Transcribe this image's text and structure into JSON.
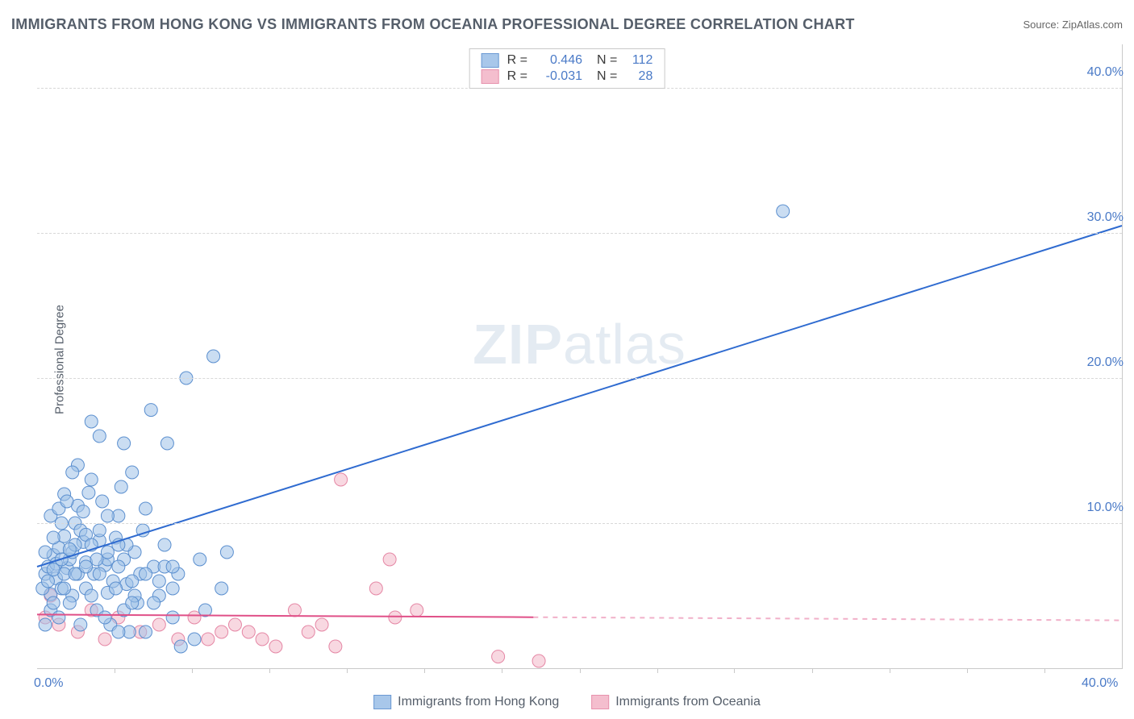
{
  "title": "IMMIGRANTS FROM HONG KONG VS IMMIGRANTS FROM OCEANIA PROFESSIONAL DEGREE CORRELATION CHART",
  "source_label": "Source: ",
  "source_value": "ZipAtlas.com",
  "ylabel": "Professional Degree",
  "watermark": {
    "bold": "ZIP",
    "rest": "atlas"
  },
  "chart": {
    "type": "scatter-with-regression",
    "xlim": [
      0,
      40
    ],
    "ylim": [
      0,
      43
    ],
    "xticks": [
      0,
      40
    ],
    "xtick_labels": [
      "0.0%",
      "40.0%"
    ],
    "xtick_minor_positions": [
      2.86,
      5.71,
      8.57,
      11.43,
      14.28,
      17.14,
      20.0,
      22.86,
      25.71,
      28.57,
      31.43,
      34.28,
      37.14
    ],
    "yticks": [
      10,
      20,
      30,
      40
    ],
    "ytick_labels": [
      "10.0%",
      "20.0%",
      "30.0%",
      "40.0%"
    ],
    "background_color": "#ffffff",
    "grid_color": "#d8d8d8",
    "axis_color": "#c9c9c9",
    "tick_label_color": "#4a7ac7",
    "marker_radius": 8,
    "marker_stroke_width": 1,
    "series": [
      {
        "name": "Immigrants from Hong Kong",
        "color_fill": "#9fc1e8",
        "color_stroke": "#5b8fcf",
        "fill_opacity": 0.55,
        "R": "0.446",
        "N": "112",
        "regression": {
          "x1": 0,
          "y1": 7.0,
          "x2": 40,
          "y2": 30.5,
          "color": "#2f6bd0",
          "width": 2,
          "dash_after_x": null
        },
        "points": [
          [
            0.3,
            6.5
          ],
          [
            0.4,
            7.0
          ],
          [
            0.5,
            5.1
          ],
          [
            0.6,
            7.8
          ],
          [
            0.7,
            6.2
          ],
          [
            0.8,
            8.3
          ],
          [
            0.9,
            5.5
          ],
          [
            1.0,
            9.1
          ],
          [
            1.1,
            6.9
          ],
          [
            1.2,
            7.5
          ],
          [
            1.3,
            8.0
          ],
          [
            1.4,
            10.0
          ],
          [
            1.5,
            11.2
          ],
          [
            1.6,
            9.5
          ],
          [
            1.7,
            8.7
          ],
          [
            1.8,
            7.3
          ],
          [
            1.9,
            12.1
          ],
          [
            2.0,
            13.0
          ],
          [
            2.1,
            6.5
          ],
          [
            2.2,
            4.0
          ],
          [
            2.3,
            8.8
          ],
          [
            2.4,
            11.5
          ],
          [
            2.5,
            7.1
          ],
          [
            2.6,
            5.2
          ],
          [
            2.7,
            3.0
          ],
          [
            2.8,
            6.0
          ],
          [
            2.9,
            9.0
          ],
          [
            3.0,
            10.5
          ],
          [
            3.1,
            12.5
          ],
          [
            3.2,
            7.5
          ],
          [
            3.3,
            5.8
          ],
          [
            3.4,
            2.5
          ],
          [
            3.5,
            13.5
          ],
          [
            3.6,
            8.0
          ],
          [
            3.7,
            4.5
          ],
          [
            3.8,
            6.5
          ],
          [
            3.9,
            9.5
          ],
          [
            4.0,
            11.0
          ],
          [
            4.2,
            17.8
          ],
          [
            4.3,
            7.0
          ],
          [
            4.5,
            5.0
          ],
          [
            4.7,
            8.5
          ],
          [
            4.8,
            15.5
          ],
          [
            5.0,
            3.5
          ],
          [
            5.2,
            6.5
          ],
          [
            5.3,
            1.5
          ],
          [
            5.5,
            20.0
          ],
          [
            5.8,
            2.0
          ],
          [
            6.0,
            7.5
          ],
          [
            6.2,
            4.0
          ],
          [
            6.5,
            21.5
          ],
          [
            6.8,
            5.5
          ],
          [
            7.0,
            8.0
          ],
          [
            2.0,
            17.0
          ],
          [
            1.5,
            14.0
          ],
          [
            0.5,
            10.5
          ],
          [
            1.0,
            12.0
          ],
          [
            1.3,
            13.5
          ],
          [
            0.8,
            11.0
          ],
          [
            1.7,
            10.8
          ],
          [
            0.3,
            8.0
          ],
          [
            0.6,
            9.0
          ],
          [
            0.9,
            10.0
          ],
          [
            1.1,
            11.5
          ],
          [
            1.4,
            8.5
          ],
          [
            1.8,
            9.2
          ],
          [
            2.3,
            6.5
          ],
          [
            2.6,
            7.5
          ],
          [
            2.9,
            5.5
          ],
          [
            3.2,
            4.0
          ],
          [
            3.5,
            6.0
          ],
          [
            0.2,
            5.5
          ],
          [
            0.4,
            6.0
          ],
          [
            0.7,
            7.2
          ],
          [
            1.0,
            6.5
          ],
          [
            1.3,
            5.0
          ],
          [
            0.6,
            6.8
          ],
          [
            0.9,
            7.5
          ],
          [
            1.2,
            8.2
          ],
          [
            1.5,
            6.5
          ],
          [
            1.8,
            5.5
          ],
          [
            2.0,
            8.5
          ],
          [
            2.3,
            9.5
          ],
          [
            2.6,
            10.5
          ],
          [
            3.0,
            7.0
          ],
          [
            3.3,
            8.5
          ],
          [
            3.6,
            5.0
          ],
          [
            4.0,
            6.5
          ],
          [
            4.3,
            4.5
          ],
          [
            4.7,
            7.0
          ],
          [
            5.0,
            5.5
          ],
          [
            2.3,
            16.0
          ],
          [
            3.2,
            15.5
          ],
          [
            0.5,
            4.0
          ],
          [
            0.8,
            3.5
          ],
          [
            1.2,
            4.5
          ],
          [
            1.6,
            3.0
          ],
          [
            2.0,
            5.0
          ],
          [
            2.5,
            3.5
          ],
          [
            3.0,
            2.5
          ],
          [
            0.3,
            3.0
          ],
          [
            0.6,
            4.5
          ],
          [
            1.0,
            5.5
          ],
          [
            1.4,
            6.5
          ],
          [
            1.8,
            7.0
          ],
          [
            2.2,
            7.5
          ],
          [
            2.6,
            8.0
          ],
          [
            3.0,
            8.5
          ],
          [
            3.5,
            4.5
          ],
          [
            4.0,
            2.5
          ],
          [
            4.5,
            6.0
          ],
          [
            5.0,
            7.0
          ],
          [
            27.5,
            31.5
          ]
        ]
      },
      {
        "name": "Immigrants from Oceania",
        "color_fill": "#f3b8c9",
        "color_stroke": "#e587a5",
        "fill_opacity": 0.55,
        "R": "-0.031",
        "N": "28",
        "regression": {
          "x1": 0,
          "y1": 3.7,
          "x2": 40,
          "y2": 3.3,
          "color": "#e05088",
          "width": 2,
          "dash_after_x": 18.3
        },
        "points": [
          [
            0.3,
            3.5
          ],
          [
            0.8,
            3.0
          ],
          [
            1.5,
            2.5
          ],
          [
            2.0,
            4.0
          ],
          [
            2.5,
            2.0
          ],
          [
            3.0,
            3.5
          ],
          [
            3.8,
            2.5
          ],
          [
            4.5,
            3.0
          ],
          [
            5.2,
            2.0
          ],
          [
            5.8,
            3.5
          ],
          [
            6.3,
            2.0
          ],
          [
            6.8,
            2.5
          ],
          [
            7.3,
            3.0
          ],
          [
            7.8,
            2.5
          ],
          [
            8.3,
            2.0
          ],
          [
            8.8,
            1.5
          ],
          [
            9.5,
            4.0
          ],
          [
            10.0,
            2.5
          ],
          [
            10.5,
            3.0
          ],
          [
            11.0,
            1.5
          ],
          [
            11.2,
            13.0
          ],
          [
            12.5,
            5.5
          ],
          [
            13.0,
            7.5
          ],
          [
            13.2,
            3.5
          ],
          [
            14.0,
            4.0
          ],
          [
            17.0,
            0.8
          ],
          [
            18.5,
            0.5
          ],
          [
            0.5,
            5.0
          ]
        ]
      }
    ]
  },
  "legend_top_stat_color": "#4a7ac7",
  "legend_text_color": "#555e6a"
}
